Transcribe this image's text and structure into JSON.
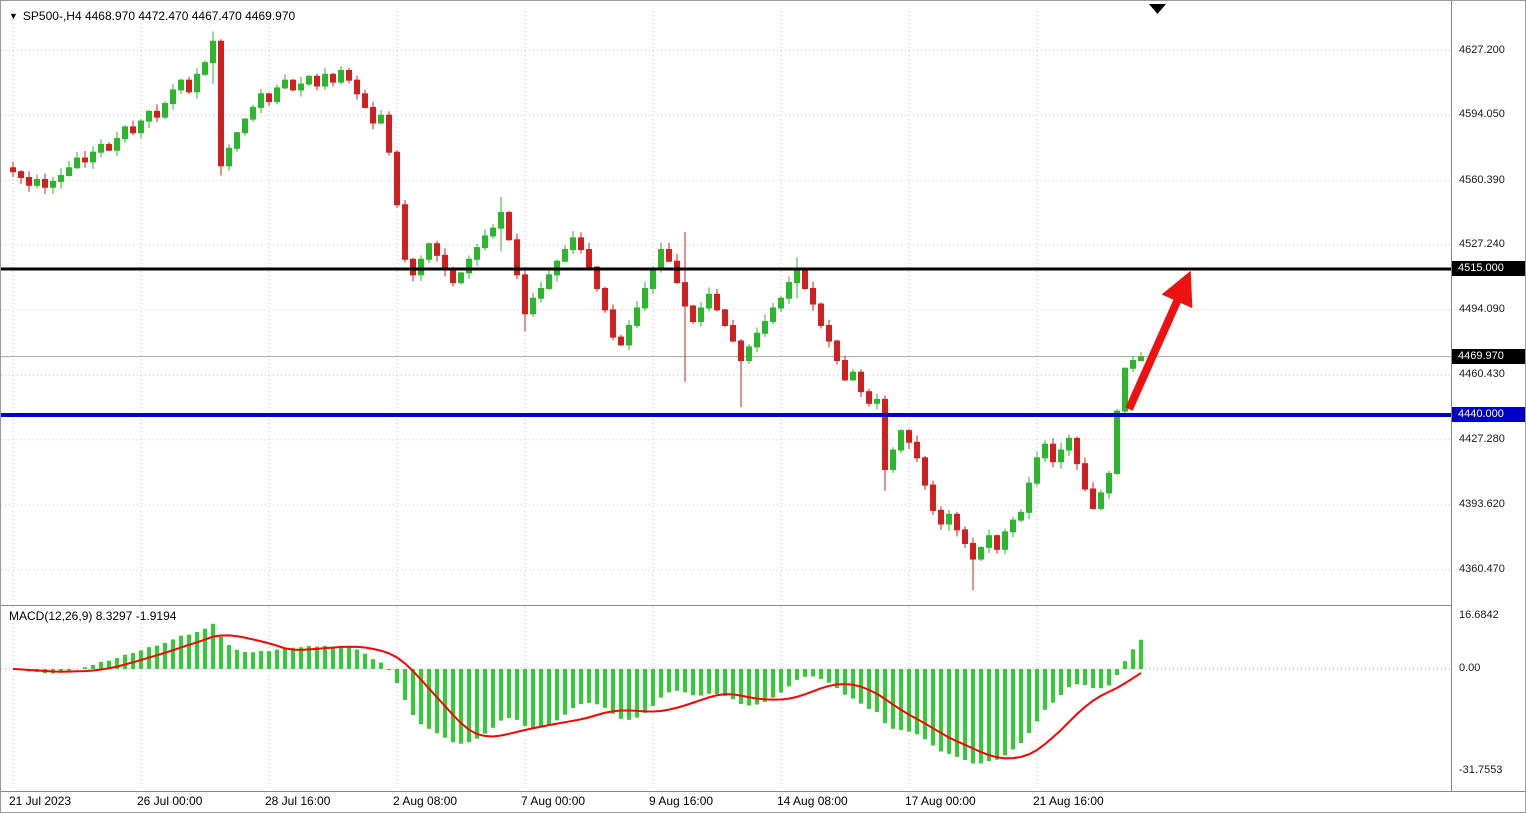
{
  "header": {
    "dropdown_icon": "▼",
    "symbol_ohlc": "SP500-,H4  4468.970 4472.470 4467.470 4469.970"
  },
  "macd_header": {
    "label": "MACD(12,26,9) 8.3297 -1.9194"
  },
  "price_axis": {
    "ticks": [
      {
        "value": 4627.2,
        "label": "4627.200"
      },
      {
        "value": 4594.05,
        "label": "4594.050"
      },
      {
        "value": 4560.39,
        "label": "4560.390"
      },
      {
        "value": 4527.24,
        "label": "4527.240"
      },
      {
        "value": 4494.09,
        "label": "4494.090"
      },
      {
        "value": 4460.43,
        "label": "4460.430"
      },
      {
        "value": 4427.28,
        "label": "4427.280"
      },
      {
        "value": 4393.62,
        "label": "4393.620"
      },
      {
        "value": 4360.47,
        "label": "4360.470"
      }
    ],
    "badges": [
      {
        "value": 4515.0,
        "label": "4515.000",
        "bg": "#000000"
      },
      {
        "value": 4469.97,
        "label": "4469.970",
        "bg": "#000000"
      },
      {
        "value": 4440.0,
        "label": "4440.000",
        "bg": "#0000c8"
      }
    ]
  },
  "macd_axis": {
    "ticks": [
      {
        "value": 16.6842,
        "label": "16.6842"
      },
      {
        "value": 0,
        "label": "0.00"
      },
      {
        "value": -31.7553,
        "label": "-31.7553"
      }
    ]
  },
  "time_axis": {
    "labels": [
      {
        "index": 0,
        "label": "21 Jul 2023"
      },
      {
        "index": 16,
        "label": "26 Jul 00:00"
      },
      {
        "index": 32,
        "label": "28 Jul 16:00"
      },
      {
        "index": 48,
        "label": "2 Aug 08:00"
      },
      {
        "index": 64,
        "label": "7 Aug 00:00"
      },
      {
        "index": 80,
        "label": "9 Aug 16:00"
      },
      {
        "index": 96,
        "label": "14 Aug 08:00"
      },
      {
        "index": 112,
        "label": "17 Aug 00:00"
      },
      {
        "index": 128,
        "label": "21 Aug 16:00"
      }
    ]
  },
  "chart_data": {
    "type": "candlestick",
    "symbol": "SP500-",
    "timeframe": "H4",
    "title": "SP500-,H4",
    "current_candle": {
      "open": 4468.97,
      "high": 4472.47,
      "low": 4467.47,
      "close": 4469.97
    },
    "levels": {
      "resistance": {
        "value": 4515.0,
        "color": "#000000",
        "width": 3
      },
      "support": {
        "value": 4440.0,
        "color": "#0000c8",
        "width": 4
      },
      "current_price": {
        "value": 4469.97,
        "color": "#aaaaaa"
      }
    },
    "price_ylim": [
      4344,
      4648
    ],
    "closes": [
      4565,
      4562,
      4558,
      4561,
      4557,
      4560,
      4563,
      4567,
      4572,
      4570,
      4575,
      4579,
      4576,
      4582,
      4588,
      4585,
      4591,
      4596,
      4593,
      4600,
      4607,
      4612,
      4606,
      4615,
      4621,
      4632,
      4568,
      4577,
      4585,
      4592,
      4598,
      4605,
      4601,
      4608,
      4612,
      4607,
      4610,
      4614,
      4609,
      4615,
      4611,
      4617,
      4612,
      4605,
      4598,
      4590,
      4594,
      4575,
      4548,
      4520,
      4512,
      4520,
      4528,
      4522,
      4515,
      4508,
      4513,
      4520,
      4526,
      4532,
      4536,
      4544,
      4530,
      4512,
      4492,
      4500,
      4505,
      4512,
      4519,
      4525,
      4531,
      4525,
      4516,
      4505,
      4494,
      4480,
      4476,
      4486,
      4495,
      4505,
      4515,
      4525,
      4519,
      4508,
      4496,
      4488,
      4495,
      4502,
      4494,
      4486,
      4478,
      4468,
      4475,
      4482,
      4488,
      4495,
      4500,
      4508,
      4514,
      4505,
      4497,
      4486,
      4478,
      4468,
      4458,
      4462,
      4452,
      4446,
      4448,
      4412,
      4422,
      4432,
      4426,
      4418,
      4404,
      4391,
      4384,
      4389,
      4381,
      4374,
      4366,
      4372,
      4378,
      4371,
      4380,
      4386,
      4390,
      4405,
      4418,
      4425,
      4416,
      4422,
      4428,
      4415,
      4402,
      4392,
      4400,
      4410,
      4442,
      4464,
      4468,
      4469.97
    ],
    "wick_overrides": {
      "25": [
        4637,
        4610
      ],
      "26": [
        4633,
        4563
      ],
      "61": [
        4552,
        4524
      ],
      "64": [
        4516,
        4483
      ],
      "84": [
        4534,
        4457
      ],
      "91": [
        4479,
        4444
      ],
      "98": [
        4521,
        4500
      ],
      "109": [
        4450,
        4401
      ],
      "120": [
        4377,
        4350
      ],
      "141": [
        4472.47,
        4467.47
      ]
    },
    "macd": {
      "fast": 12,
      "slow": 26,
      "signal": 9,
      "current_macd": 8.3297,
      "current_signal": -1.9194,
      "ylim": [
        -33,
        18
      ],
      "histogram_color": "#32cd32",
      "signal_color": "#ff0000"
    },
    "colors": {
      "bull": "#2db52d",
      "bear": "#cf2020",
      "grid": "#c8c8c8",
      "arrow": "#ee1111"
    }
  },
  "annotations": {
    "trend_arrow": {
      "from_value": 4442,
      "to_value": 4515,
      "color": "#ee1111"
    }
  }
}
